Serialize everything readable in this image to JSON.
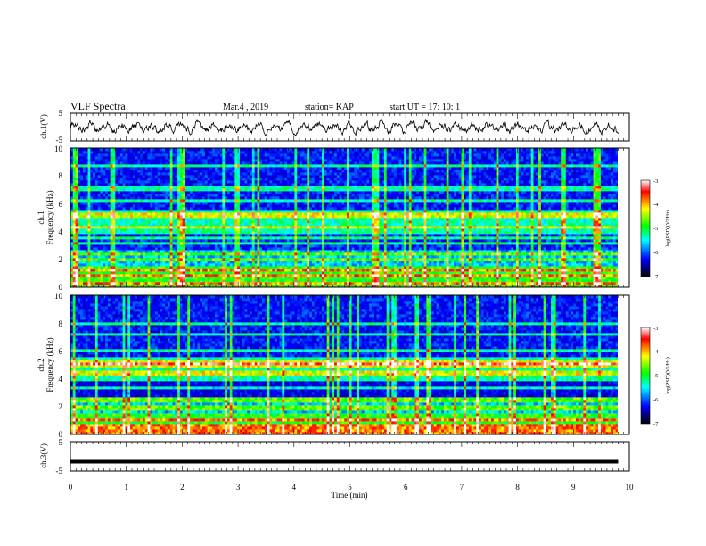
{
  "header": {
    "title": "VLF Spectra",
    "date": "Mar.4 , 2019",
    "station": "station= KAP",
    "start_ut": "start UT = 17: 10: 1"
  },
  "chart_data": [
    {
      "type": "line",
      "id": "ch1-waveform",
      "ylabel": "ch.1(V)",
      "ylim": [
        -5,
        5
      ],
      "y_ticks": [
        "5",
        "-5"
      ],
      "xlim": [
        0,
        10
      ],
      "series_note_values": "noisy waveform around 0 V, amplitude about ±2 V, time span 0–9.8 min",
      "color": "#000000"
    },
    {
      "type": "heatmap",
      "id": "ch1-spectrogram",
      "ylabel_line1": "ch.1",
      "ylabel_line2": "Frequency (kHz)",
      "ylim": [
        0,
        10
      ],
      "y_ticks": [
        "0",
        "2",
        "4",
        "6",
        "8",
        "10"
      ],
      "xlim": [
        0,
        10
      ],
      "data_extent_min": 9.8,
      "colorbar": {
        "label": "log(PSD)(V²/Hz)",
        "range": [
          -7,
          -3
        ],
        "ticks": [
          "-3",
          "-4",
          "-5",
          "-6",
          "-7"
        ],
        "colors": [
          "#ffffff",
          "#ff0000",
          "#ffff00",
          "#00ff00",
          "#00ffff",
          "#0000ff",
          "#000000"
        ]
      }
    },
    {
      "type": "heatmap",
      "id": "ch2-spectrogram",
      "ylabel_line1": "ch.2",
      "ylabel_line2": "Frequency (kHz)",
      "ylim": [
        0,
        10
      ],
      "y_ticks": [
        "0",
        "2",
        "4",
        "6",
        "8",
        "10"
      ],
      "xlim": [
        0,
        10
      ],
      "data_extent_min": 9.8,
      "colorbar": {
        "label": "log(PSD)(V²/Hz)",
        "range": [
          -7,
          -3
        ],
        "ticks": [
          "-3",
          "-4",
          "-5",
          "-6",
          "-7"
        ],
        "colors": [
          "#ffffff",
          "#ff0000",
          "#ffff00",
          "#00ff00",
          "#00ffff",
          "#0000ff",
          "#000000"
        ]
      }
    },
    {
      "type": "line",
      "id": "ch3-waveform",
      "ylabel": "ch.3(V)",
      "ylim": [
        -5,
        5
      ],
      "y_ticks": [
        "5",
        "-5"
      ],
      "xlim": [
        0,
        10
      ],
      "constant_value": -1.8,
      "color": "#000000"
    }
  ],
  "x_axis": {
    "label": "Time (min)",
    "ticks": [
      "0",
      "1",
      "2",
      "3",
      "4",
      "5",
      "6",
      "7",
      "8",
      "9",
      "10"
    ]
  }
}
